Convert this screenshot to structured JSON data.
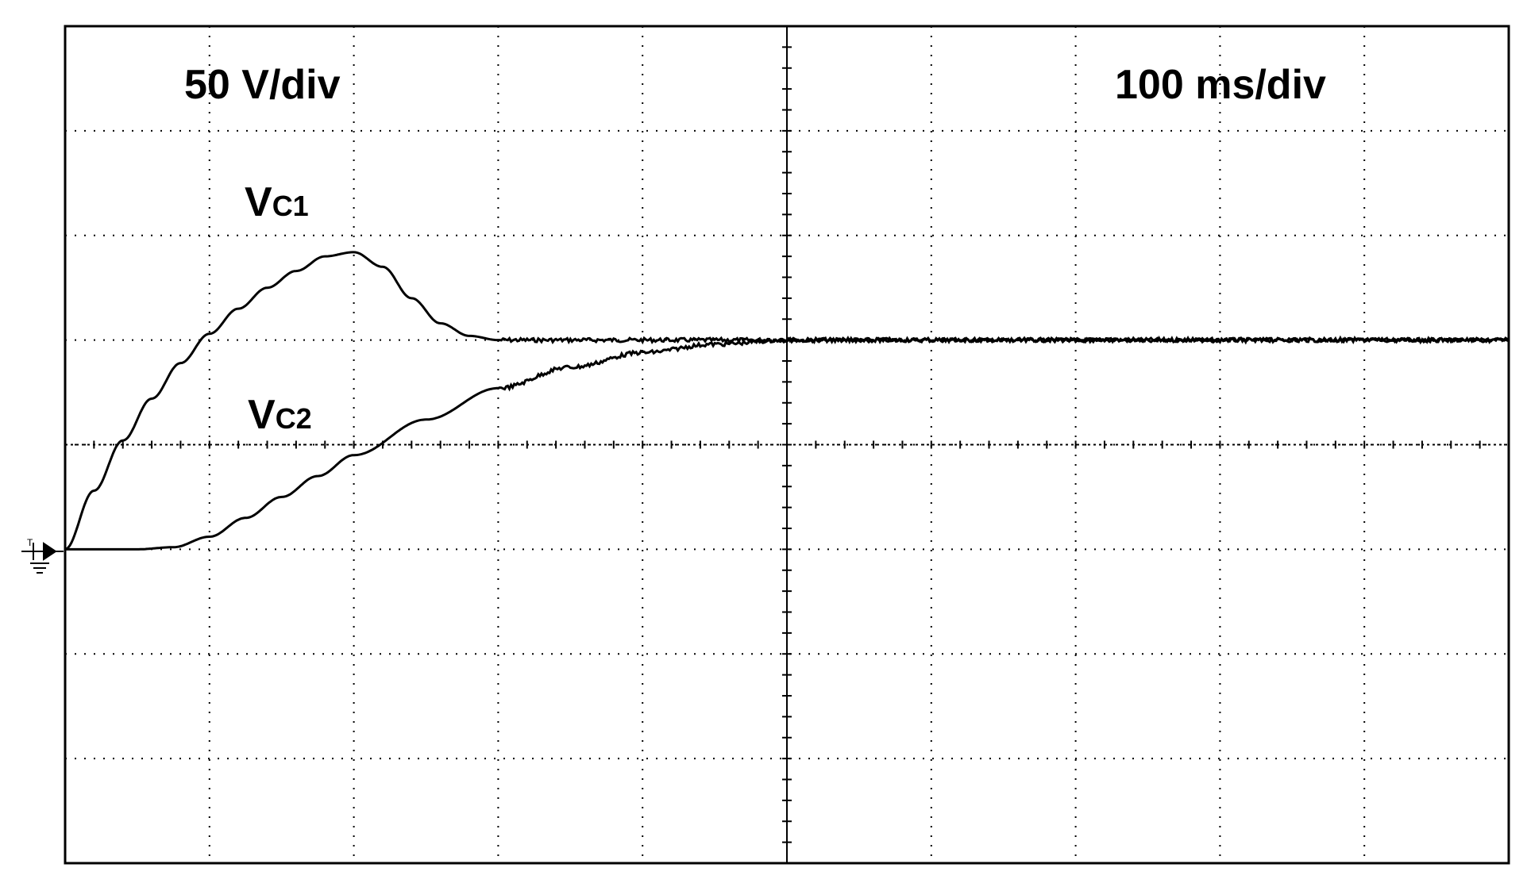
{
  "scale_label": "50 V/div",
  "timebase_label": "100 ms/div",
  "chart_data": {
    "type": "line",
    "title": "",
    "xlabel": "",
    "ylabel": "",
    "x_divisions": 10,
    "y_divisions": 8,
    "y_units_per_div": 50,
    "x_units_per_div": 100,
    "x_unit": "ms",
    "y_unit": "V",
    "xlim": [
      0,
      1000
    ],
    "ylim": [
      -150,
      250
    ],
    "grid": true,
    "series": [
      {
        "name": "VC1",
        "label_main": "V",
        "label_sub": "C1",
        "x": [
          0,
          20,
          40,
          60,
          80,
          100,
          120,
          140,
          160,
          180,
          200,
          220,
          240,
          260,
          280,
          300,
          350,
          400,
          500,
          600,
          700,
          800,
          900,
          1000
        ],
        "values": [
          0,
          28,
          52,
          72,
          89,
          103,
          115,
          125,
          133,
          140,
          142,
          135,
          120,
          108,
          102,
          100,
          100,
          100,
          100,
          100,
          100,
          100,
          100,
          100
        ]
      },
      {
        "name": "VC2",
        "label_main": "V",
        "label_sub": "C2",
        "x": [
          0,
          50,
          75,
          100,
          125,
          150,
          175,
          200,
          250,
          300,
          350,
          400,
          450,
          500,
          600,
          700,
          800,
          900,
          1000
        ],
        "values": [
          0,
          0,
          1,
          6,
          15,
          25,
          35,
          45,
          62,
          77,
          87,
          94,
          98,
          100,
          100,
          100,
          100,
          100,
          100
        ]
      }
    ]
  }
}
